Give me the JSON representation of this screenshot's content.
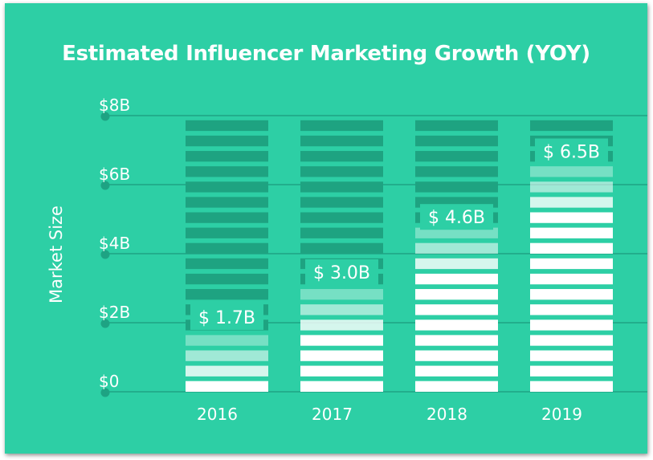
{
  "colors": {
    "background": "#2dcfa5",
    "gridline": "#1ea383",
    "bar_empty": "#1ea381",
    "bar_fill": "#ffffff",
    "label_bg": "#2dcfa5"
  },
  "chart_data": {
    "type": "bar",
    "title": "Estimated Influencer Marketing Growth (YOY)",
    "ylabel": "Market Size",
    "xlabel": "",
    "categories": [
      "2016",
      "2017",
      "2018",
      "2019"
    ],
    "values": [
      1.7,
      3.0,
      4.6,
      6.5
    ],
    "data_labels": [
      "$ 1.7B",
      "$ 3.0B",
      "$ 4.6B",
      "$ 6.5B"
    ],
    "ylim": [
      0,
      8
    ],
    "yticks": [
      0,
      2,
      4,
      6,
      8
    ],
    "ytick_labels": [
      "$0",
      "$2B",
      "$4B",
      "$6B",
      "$8B"
    ],
    "unit": "billions USD",
    "grid": true,
    "legend": "none"
  }
}
